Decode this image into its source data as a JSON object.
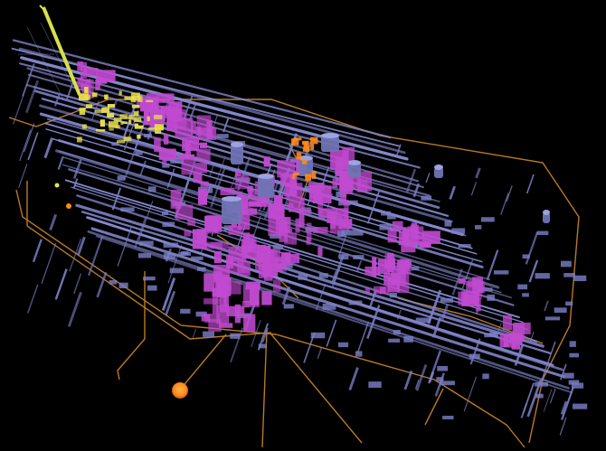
{
  "scene": {
    "background_color": "#000000",
    "pipe_color": "#8a8fd8",
    "structure_color": "#7c80c8",
    "equipment_color": "#c04ad0",
    "cable_color": "#d9902e",
    "highlight_color": "#e8e04a",
    "marker_color": "#ff8a1a"
  }
}
